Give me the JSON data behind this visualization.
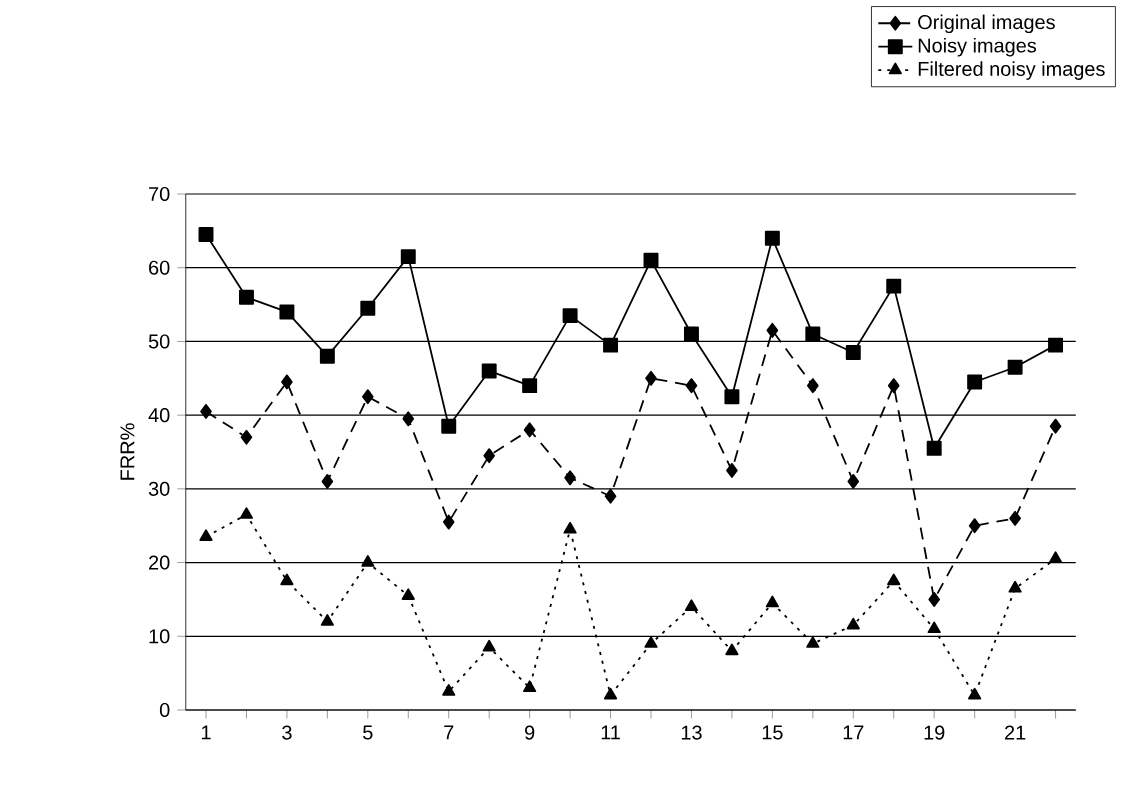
{
  "chart_data": {
    "type": "line",
    "ylabel": "FRR%",
    "categories": [
      "1",
      null,
      "3",
      null,
      "5",
      null,
      "7",
      null,
      "9",
      null,
      "11",
      null,
      "13",
      null,
      "15",
      null,
      "17",
      null,
      "19",
      null,
      "21",
      null
    ],
    "ylim": [
      0,
      70
    ],
    "yticks": [
      0,
      10,
      20,
      30,
      40,
      50,
      60,
      70
    ],
    "grid": "y",
    "legend": "top right",
    "series": [
      {
        "name": "Original images",
        "color": "#000000",
        "marker": "diamond",
        "line_style": "dashed",
        "values": [
          40.5,
          37,
          44.5,
          31,
          42.5,
          39.5,
          25.5,
          34.5,
          38,
          31.5,
          29,
          45,
          44,
          32.5,
          51.5,
          44,
          31,
          44,
          15,
          25,
          26,
          38.5
        ]
      },
      {
        "name": "Noisy images",
        "color": "#000000",
        "marker": "square",
        "line_style": "solid",
        "values": [
          64.5,
          56,
          54,
          48,
          54.5,
          61.5,
          38.5,
          46,
          44,
          53.5,
          49.5,
          61,
          51,
          42.5,
          64,
          51,
          48.5,
          57.5,
          35.5,
          44.5,
          46.5,
          49.5
        ]
      },
      {
        "name": "Filtered noisy images",
        "color": "#000000",
        "marker": "triangle",
        "line_style": "dotted",
        "values": [
          23.5,
          26.5,
          17.5,
          12,
          20,
          15.5,
          2.5,
          8.5,
          3,
          24.5,
          2,
          9,
          14,
          8,
          14.5,
          9,
          11.5,
          17.5,
          11,
          2,
          16.5,
          20.5
        ]
      }
    ]
  }
}
